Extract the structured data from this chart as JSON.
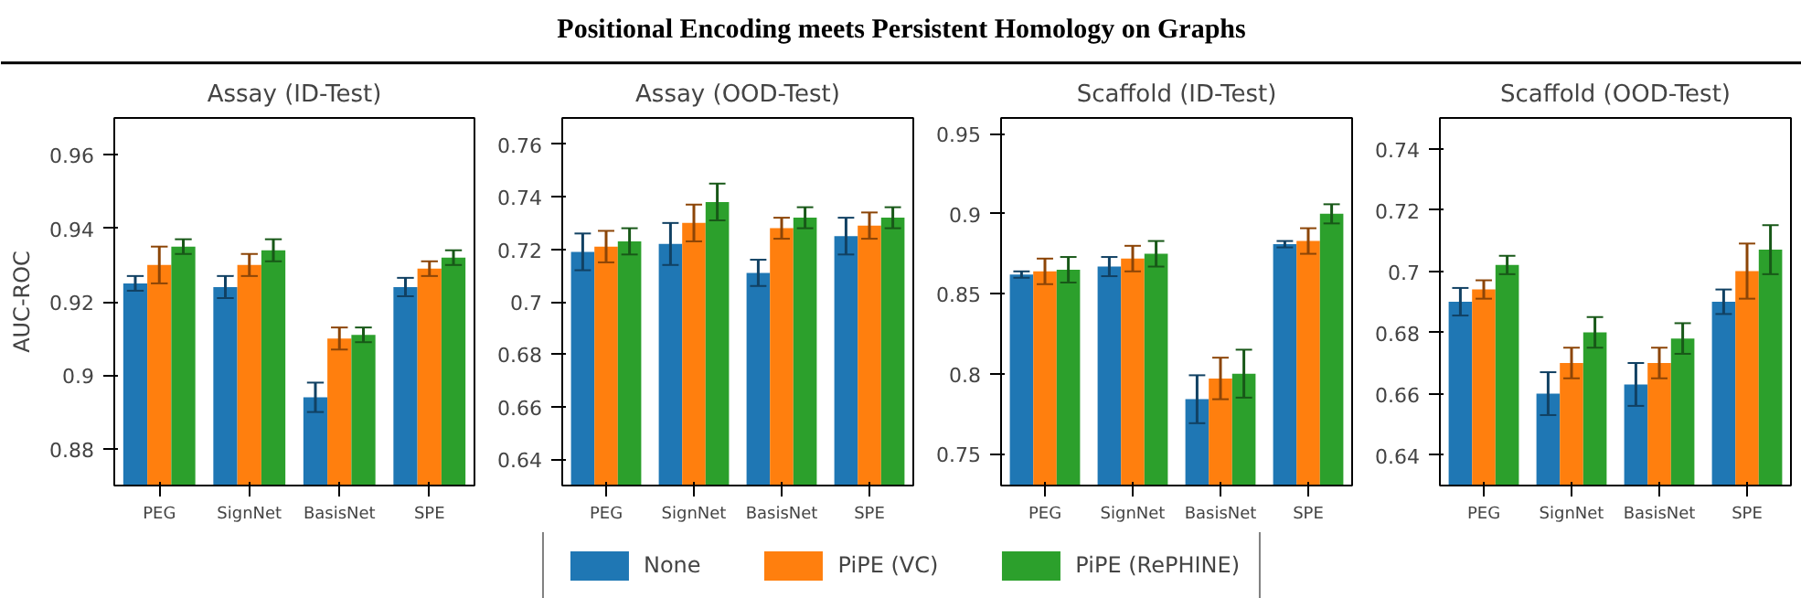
{
  "chart_data": [
    {
      "type": "other",
      "title": "Positional Encoding meets Persistent Homology on Graphs"
    },
    {
      "type": "bar",
      "title": "Assay (ID-Test)",
      "ylabel": "AUC-ROC",
      "categories": [
        "PEG",
        "SignNet",
        "BasisNet",
        "SPE"
      ],
      "ylim": [
        0.87,
        0.97
      ],
      "yticks": [
        0.88,
        0.9,
        0.92,
        0.94,
        0.96
      ],
      "grid": false,
      "legend": "bottom",
      "series": [
        {
          "name": "None",
          "color": "#1f77b4",
          "values": [
            0.925,
            0.924,
            0.894,
            0.924
          ],
          "errors": [
            0.002,
            0.003,
            0.004,
            0.0025
          ]
        },
        {
          "name": "PiPE (VC)",
          "color": "#ff7f0e",
          "values": [
            0.93,
            0.93,
            0.91,
            0.929
          ],
          "errors": [
            0.005,
            0.003,
            0.003,
            0.002
          ]
        },
        {
          "name": "PiPE (RePHINE)",
          "color": "#2ca02c",
          "values": [
            0.935,
            0.934,
            0.911,
            0.932
          ],
          "errors": [
            0.002,
            0.003,
            0.002,
            0.002
          ]
        }
      ]
    },
    {
      "type": "bar",
      "title": "Assay (OOD-Test)",
      "categories": [
        "PEG",
        "SignNet",
        "BasisNet",
        "SPE"
      ],
      "ylim": [
        0.63,
        0.77
      ],
      "yticks": [
        0.64,
        0.66,
        0.68,
        0.7,
        0.72,
        0.74,
        0.76
      ],
      "grid": false,
      "series": [
        {
          "color": "#1f77b4",
          "values": [
            0.719,
            0.722,
            0.711,
            0.725
          ],
          "errors": [
            0.007,
            0.008,
            0.005,
            0.007
          ]
        },
        {
          "color": "#ff7f0e",
          "values": [
            0.721,
            0.73,
            0.728,
            0.729
          ],
          "errors": [
            0.006,
            0.007,
            0.004,
            0.005
          ]
        },
        {
          "color": "#2ca02c",
          "values": [
            0.723,
            0.738,
            0.732,
            0.732
          ],
          "errors": [
            0.005,
            0.007,
            0.004,
            0.004
          ]
        }
      ]
    },
    {
      "type": "bar",
      "title": "Scaffold (ID-Test)",
      "categories": [
        "PEG",
        "SignNet",
        "BasisNet",
        "SPE"
      ],
      "ylim": [
        0.73,
        0.96
      ],
      "yticks": [
        0.75,
        0.8,
        0.85,
        0.9,
        0.95
      ],
      "grid": false,
      "series": [
        {
          "color": "#1f77b4",
          "values": [
            0.862,
            0.867,
            0.784,
            0.881
          ],
          "errors": [
            0.002,
            0.006,
            0.015,
            0.002
          ]
        },
        {
          "color": "#ff7f0e",
          "values": [
            0.864,
            0.872,
            0.797,
            0.883
          ],
          "errors": [
            0.008,
            0.008,
            0.013,
            0.008
          ]
        },
        {
          "color": "#2ca02c",
          "values": [
            0.865,
            0.875,
            0.8,
            0.9
          ],
          "errors": [
            0.008,
            0.008,
            0.015,
            0.006
          ]
        }
      ]
    },
    {
      "type": "bar",
      "title": "Scaffold (OOD-Test)",
      "categories": [
        "PEG",
        "SignNet",
        "BasisNet",
        "SPE"
      ],
      "ylim": [
        0.63,
        0.75
      ],
      "yticks": [
        0.64,
        0.66,
        0.68,
        0.7,
        0.72,
        0.74
      ],
      "grid": false,
      "series": [
        {
          "color": "#1f77b4",
          "values": [
            0.69,
            0.66,
            0.663,
            0.69
          ],
          "errors": [
            0.0045,
            0.007,
            0.007,
            0.004
          ]
        },
        {
          "color": "#ff7f0e",
          "values": [
            0.694,
            0.67,
            0.67,
            0.7
          ],
          "errors": [
            0.003,
            0.005,
            0.005,
            0.009
          ]
        },
        {
          "color": "#2ca02c",
          "values": [
            0.702,
            0.68,
            0.678,
            0.707
          ],
          "errors": [
            0.003,
            0.005,
            0.005,
            0.008
          ]
        }
      ]
    }
  ]
}
